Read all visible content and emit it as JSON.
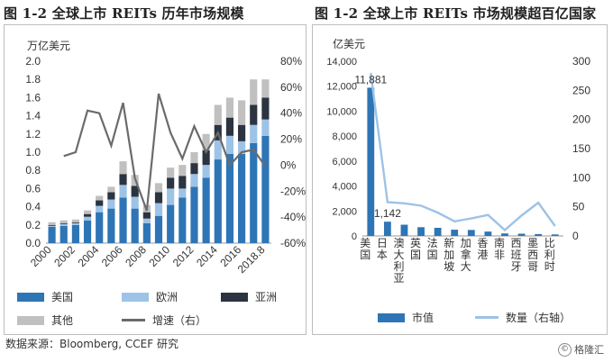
{
  "colors": {
    "us": "#2e75b6",
    "europe": "#9dc3e6",
    "asia": "#2b3440",
    "other": "#c0c0c0",
    "growth": "#6b6b6b",
    "market": "#2e75b6",
    "count": "#9dc3e6"
  },
  "titles": {
    "left": "图 1-2 全球上市 REITs 历年市场规模",
    "right": "图 1-2 全球上市 REITs 市场规模超百亿国家"
  },
  "source": "数据来源：Bloomberg, CCEF 研究",
  "watermark": "格隆汇",
  "chart_data": [
    {
      "type": "bar",
      "stacked": true,
      "unit_label": "万亿美元",
      "categories": [
        "2000",
        "2001",
        "2002",
        "2003",
        "2004",
        "2005",
        "2006",
        "2007",
        "2008",
        "2009",
        "2010",
        "2011",
        "2012",
        "2013",
        "2014",
        "2015",
        "2016",
        "2017",
        "2018.8"
      ],
      "x_tick_labels": [
        "2000",
        "2002",
        "2004",
        "2006",
        "2008",
        "2010",
        "2012",
        "2014",
        "2016",
        "2018.8"
      ],
      "series": [
        {
          "name": "美国",
          "values": [
            0.18,
            0.19,
            0.2,
            0.25,
            0.34,
            0.38,
            0.5,
            0.38,
            0.22,
            0.3,
            0.42,
            0.5,
            0.62,
            0.72,
            0.92,
            0.98,
            0.98,
            1.1,
            1.18
          ]
        },
        {
          "name": "欧洲",
          "values": [
            0.01,
            0.02,
            0.02,
            0.04,
            0.07,
            0.1,
            0.14,
            0.13,
            0.05,
            0.14,
            0.18,
            0.1,
            0.14,
            0.14,
            0.21,
            0.2,
            0.14,
            0.2,
            0.18
          ]
        },
        {
          "name": "亚洲",
          "values": [
            0.01,
            0.01,
            0.01,
            0.03,
            0.06,
            0.08,
            0.12,
            0.12,
            0.07,
            0.12,
            0.12,
            0.14,
            0.12,
            0.16,
            0.17,
            0.2,
            0.18,
            0.22,
            0.24
          ]
        },
        {
          "name": "其他",
          "values": [
            0.03,
            0.03,
            0.03,
            0.04,
            0.05,
            0.06,
            0.14,
            0.12,
            0.08,
            0.1,
            0.11,
            0.12,
            0.12,
            0.18,
            0.22,
            0.22,
            0.27,
            0.28,
            0.2
          ]
        }
      ],
      "line": {
        "name": "增速（右）",
        "values": [
          null,
          7,
          10,
          42,
          40,
          15,
          48,
          -10,
          -35,
          55,
          25,
          5,
          30,
          10,
          25,
          0,
          10,
          12,
          -1
        ]
      },
      "y_left": {
        "min": 0,
        "max": 2.0,
        "ticks": [
          "0.0",
          "0.2",
          "0.4",
          "0.6",
          "0.8",
          "1.0",
          "1.2",
          "1.4",
          "1.6",
          "1.8",
          "2.0"
        ]
      },
      "y_right": {
        "min": -60,
        "max": 80,
        "ticks": [
          "-60%",
          "-40%",
          "-20%",
          "0%",
          "20%",
          "40%",
          "60%",
          "80%"
        ]
      },
      "legend": [
        "美国",
        "欧洲",
        "亚洲",
        "其他",
        "增速（右）"
      ]
    },
    {
      "type": "bar",
      "unit_label": "亿美元",
      "categories": [
        "美国",
        "日本",
        "澳大利亚",
        "英国",
        "法国",
        "新加坡",
        "加拿大",
        "香港",
        "南非",
        "西班牙",
        "墨西哥",
        "比利时"
      ],
      "series": [
        {
          "name": "市值",
          "values": [
            11881,
            1142,
            900,
            700,
            650,
            500,
            480,
            350,
            200,
            180,
            150,
            120
          ]
        }
      ],
      "line": {
        "name": "数量（右轴）",
        "values": [
          280,
          58,
          56,
          52,
          40,
          25,
          30,
          36,
          10,
          35,
          57,
          17
        ]
      },
      "data_labels": [
        "11,881",
        "1,142"
      ],
      "y_left": {
        "min": 0,
        "max": 14000,
        "ticks": [
          "0",
          "2,000",
          "4,000",
          "6,000",
          "8,000",
          "10,000",
          "12,000",
          "14,000"
        ]
      },
      "y_right": {
        "min": 0,
        "max": 300,
        "ticks": [
          "0",
          "50",
          "100",
          "150",
          "200",
          "250",
          "300"
        ]
      },
      "legend": [
        "市值",
        "数量（右轴）"
      ]
    }
  ]
}
